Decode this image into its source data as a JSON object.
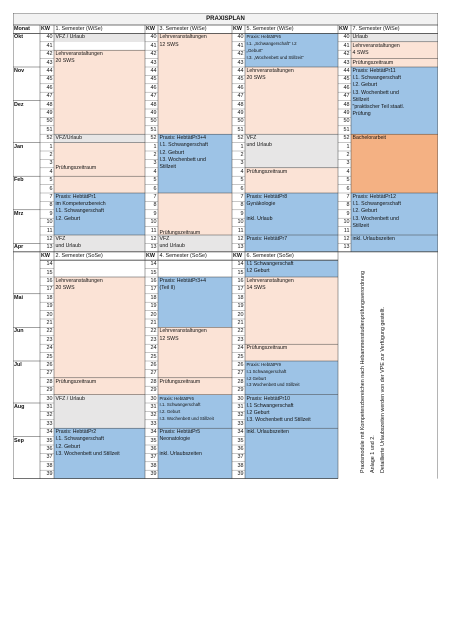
{
  "title": "PRAXISPLAN",
  "colors": {
    "peach": "#fbe3d6",
    "blue": "#9dc3e6",
    "gray": "#e7e6e6",
    "orange": "#f4b183",
    "title_bg": "#f2f2f2"
  },
  "header": {
    "monat": "Monat",
    "kw": "KW",
    "sem1": "1. Semester (WiSe)",
    "sem3": "3. Semester (WiSe)",
    "sem5": "5. Semester (WiSe)",
    "sem7": "7. Semester (WiSe)"
  },
  "header2": {
    "kw": "KW",
    "sem2": "2. Semester (SoSe)",
    "sem4": "4. Semester (SoSe)",
    "sem6": "6. Semester (SoSe)"
  },
  "months_top": [
    {
      "label": "Okt",
      "row": 0
    },
    {
      "label": "Nov",
      "row": 4
    },
    {
      "label": "Dez",
      "row": 8
    },
    {
      "label": "Jan",
      "row": 13
    },
    {
      "label": "Feb",
      "row": 17
    },
    {
      "label": "Mrz",
      "row": 21
    },
    {
      "label": "Apr",
      "row": 25
    }
  ],
  "months_bottom": [
    {
      "label": "Mai",
      "row": 4
    },
    {
      "label": "Jun",
      "row": 8
    },
    {
      "label": "Jul",
      "row": 12
    },
    {
      "label": "Aug",
      "row": 17
    },
    {
      "label": "Sep",
      "row": 21
    }
  ],
  "kw_top": [
    "40",
    "41",
    "42",
    "43",
    "44",
    "45",
    "46",
    "47",
    "48",
    "49",
    "50",
    "51",
    "52",
    "1",
    "2",
    "3",
    "4",
    "5",
    "6",
    "7",
    "8",
    "9",
    "10",
    "11",
    "12",
    "13"
  ],
  "kw_bottom": [
    "14",
    "15",
    "16",
    "17",
    "18",
    "19",
    "20",
    "21",
    "22",
    "23",
    "24",
    "25",
    "26",
    "27",
    "28",
    "29",
    "30",
    "31",
    "32",
    "33",
    "34",
    "35",
    "36",
    "37",
    "38",
    "39"
  ],
  "blocks_top": {
    "s1": [
      {
        "r0": 0,
        "r1": 1,
        "fill": "gray",
        "lines": [
          "VFZ / Urlaub"
        ]
      },
      {
        "r0": 2,
        "r1": 12,
        "fill": "peach",
        "lines": [
          "Lehrveranstaltungen",
          "20 SWS"
        ]
      },
      {
        "r0": 12,
        "r1": 13,
        "fill": "gray",
        "lines": [
          "VFZ/Urlaub"
        ]
      },
      {
        "r0": 13,
        "r1": 17,
        "fill": "peach",
        "lines": [
          "",
          "",
          "",
          "Prüfungszeitraum"
        ]
      },
      {
        "r0": 17,
        "r1": 19,
        "fill": "peach",
        "lines": []
      },
      {
        "r0": 19,
        "r1": 24,
        "fill": "blue",
        "lines": [
          "Praxis: HebtätPr1",
          "im Kompetenzbereich",
          "I.1. Schwangerschaft",
          "I.2. Geburt"
        ]
      },
      {
        "r0": 24,
        "r1": 26,
        "fill": "gray",
        "lines": [
          "VFZ",
          "und Urlaub"
        ]
      }
    ],
    "s3": [
      {
        "r0": 0,
        "r1": 12,
        "fill": "peach",
        "lines": [
          "Lehrveranstaltungen",
          "12 SWS"
        ]
      },
      {
        "r0": 12,
        "r1": 19,
        "fill": "blue",
        "lines": [
          "Praxis: HebtätPr3+4",
          "I.1. Schwangerschaft",
          "I.2. Geburt",
          "I.3. Wochenbett und",
          "Stillzeit"
        ]
      },
      {
        "r0": 19,
        "r1": 24,
        "fill": "peach",
        "lines": [
          "",
          "",
          "",
          "",
          "",
          "Prüfungszeitraum"
        ]
      },
      {
        "r0": 24,
        "r1": 26,
        "fill": "gray",
        "lines": [
          "VFZ",
          "und Urlaub"
        ]
      }
    ],
    "s5": [
      {
        "r0": 0,
        "r1": 4,
        "fill": "blue",
        "small": true,
        "lines": [
          "Praxis: HebtätPr6",
          "I.1. „Schwangerschaft“ I.2",
          "„Geburt“",
          "I.3. „Wochenbett und Stillzeit“"
        ]
      },
      {
        "r0": 4,
        "r1": 12,
        "fill": "peach",
        "lines": [
          "Lehrveranstaltungen",
          "20 SWS"
        ]
      },
      {
        "r0": 12,
        "r1": 16,
        "fill": "gray",
        "lines": [
          "VFZ",
          "und Urlaub"
        ]
      },
      {
        "r0": 16,
        "r1": 19,
        "fill": "peach",
        "lines": [
          "Prüfungszeitraum"
        ]
      },
      {
        "r0": 19,
        "r1": 24,
        "fill": "blue",
        "lines": [
          "Praxis: HebtätPr8",
          "Gynäkologie",
          "",
          "inkl. Urlaub"
        ]
      },
      {
        "r0": 24,
        "r1": 26,
        "fill": "blue",
        "lines": [
          "Praxis: HebtätPr7"
        ]
      }
    ],
    "s7": [
      {
        "r0": 0,
        "r1": 1,
        "fill": "gray",
        "lines": [
          "Urlaub"
        ]
      },
      {
        "r0": 1,
        "r1": 3,
        "fill": "peach",
        "lines": [
          "Lehrveranstaltungen",
          "4 SWS"
        ]
      },
      {
        "r0": 3,
        "r1": 4,
        "fill": "peach",
        "lines": [
          "Prüfungszeitraum"
        ]
      },
      {
        "r0": 4,
        "r1": 12,
        "fill": "blue",
        "lines": [
          "Praxis: HebtätPr11",
          "I.1. Schwangerschaft",
          "I.2. Geburt",
          "I.3. Wochenbett und",
          "Stillzeit",
          "\"praktischer Teil staatl.",
          "Prüfung"
        ]
      },
      {
        "r0": 12,
        "r1": 19,
        "fill": "orange",
        "lines": [
          "Bachelorarbeit"
        ]
      },
      {
        "r0": 19,
        "r1": 24,
        "fill": "blue",
        "lines": [
          "Praxis: HebtätPr12",
          "I.1. Schwangerschaft",
          "I.2. Geburt",
          "I.3. Wochenbett und",
          "Stillzeit"
        ]
      },
      {
        "r0": 24,
        "r1": 26,
        "fill": "blue",
        "lines": [
          "inkl. Urlaubszeiten"
        ]
      }
    ]
  },
  "blocks_bottom": {
    "s2": [
      {
        "r0": 0,
        "r1": 2,
        "fill": "white",
        "lines": []
      },
      {
        "r0": 2,
        "r1": 14,
        "fill": "peach",
        "lines": [
          "Lehrveranstaltungen",
          "20 SWS"
        ]
      },
      {
        "r0": 14,
        "r1": 16,
        "fill": "peach",
        "lines": [
          "Prüfungszeitraum"
        ]
      },
      {
        "r0": 16,
        "r1": 20,
        "fill": "gray",
        "lines": [
          "VFZ / Urlaub"
        ]
      },
      {
        "r0": 20,
        "r1": 26,
        "fill": "blue",
        "lines": [
          "Praxis: HebtätPr2",
          "I.1. Schwangerschaft",
          "I.2. Geburt",
          "I.3. Wochenbett und Stillzeit"
        ]
      }
    ],
    "s4": [
      {
        "r0": 0,
        "r1": 2,
        "fill": "white",
        "lines": []
      },
      {
        "r0": 2,
        "r1": 8,
        "fill": "blue",
        "lines": [
          "Praxis: HebtätPr3+4",
          "(Teil II)"
        ]
      },
      {
        "r0": 8,
        "r1": 14,
        "fill": "peach",
        "lines": [
          "Lehrveranstaltungen",
          "12 SWS"
        ]
      },
      {
        "r0": 14,
        "r1": 16,
        "fill": "peach",
        "lines": [
          "Prüfungszeitraum"
        ]
      },
      {
        "r0": 16,
        "r1": 20,
        "fill": "blue",
        "small": true,
        "lines": [
          "Praxis: HebtätPr6",
          "I.1. Schwangerschaft",
          "I.2. Geburt",
          "I.3. Wochenbett und Stillzeit"
        ]
      },
      {
        "r0": 20,
        "r1": 26,
        "fill": "blue",
        "lines": [
          "Praxis: HebtätPr5",
          "Neonatologie",
          "",
          "inkl. Urlaubszeiten"
        ]
      }
    ],
    "s6": [
      {
        "r0": 0,
        "r1": 2,
        "fill": "blue",
        "lines": [
          "I.1 Schwangerschaft",
          "I.2 Geburt"
        ]
      },
      {
        "r0": 2,
        "r1": 10,
        "fill": "peach",
        "lines": [
          "Lehrveranstaltungen",
          "14 SWS"
        ]
      },
      {
        "r0": 10,
        "r1": 12,
        "fill": "peach",
        "lines": [
          "Prüfungszeitraum"
        ]
      },
      {
        "r0": 12,
        "r1": 16,
        "fill": "blue",
        "small": true,
        "lines": [
          "Praxis: HebtätPr9",
          "I.1 Schwangerschaft",
          "I.2 Geburt",
          "I.3 Wochenbett und Stillzeit"
        ]
      },
      {
        "r0": 16,
        "r1": 20,
        "fill": "blue",
        "lines": [
          "Praxis: HebtätPr10",
          "I.1 Schwangerschaft",
          "I.2 Geburt",
          "I.3. Wochenbett und Stillzeit"
        ]
      },
      {
        "r0": 20,
        "r1": 26,
        "fill": "blue",
        "lines": [
          "inkl. Urlaubszeiten"
        ]
      }
    ]
  },
  "vertical_notes": [
    "Praxismodule mit Kompetenzbereichen nach Hebammenstudienprüfungsverordnung",
    "Anlage 1 und 2.",
    "Detaillierte Urlaubszeiten werden von der VPE zur Verfügung gestellt."
  ]
}
